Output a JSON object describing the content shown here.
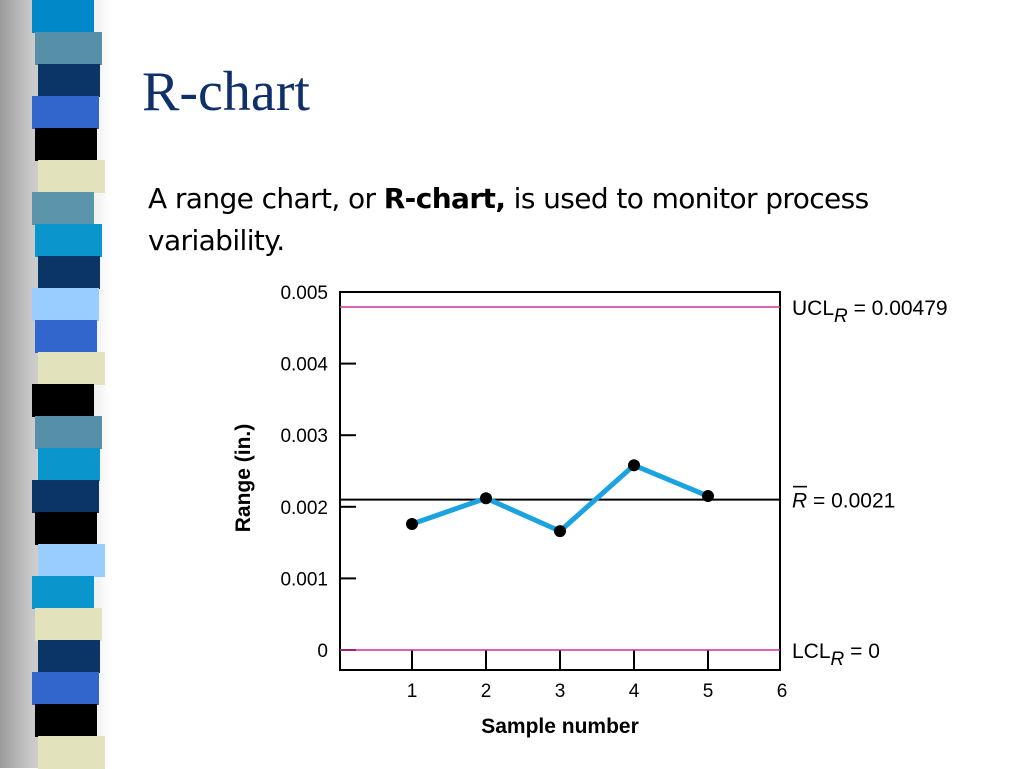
{
  "slide": {
    "title": "R-chart",
    "body": {
      "part1": "A range chart, or ",
      "bold": "R-chart,",
      "part2": " is used to monitor process variability."
    }
  },
  "decoration": {
    "band_colors": [
      "#0088c8",
      "#5590a8",
      "#0a3566",
      "#3366cc",
      "#000000",
      "#e2e2bc",
      "#5c94ac",
      "#0a96cc",
      "#0a3566",
      "#99ccff",
      "#3366cc",
      "#e2e2bc",
      "#000000",
      "#5590a8",
      "#0a96cc",
      "#0a3566",
      "#000000",
      "#99ccff",
      "#0a96cc",
      "#e2e2bc",
      "#0a3566",
      "#3366cc",
      "#000000",
      "#e2e2bc"
    ]
  },
  "chart_data": {
    "type": "line",
    "xlabel": "Sample number",
    "ylabel": "Range (in.)",
    "xlim": [
      0,
      6
    ],
    "ylim": [
      0,
      0.005
    ],
    "x_ticks": [
      1,
      2,
      3,
      4,
      5,
      6
    ],
    "y_ticks": [
      "0",
      "0.001",
      "0.002",
      "0.003",
      "0.004",
      "0.005"
    ],
    "y_tick_values": [
      0,
      0.001,
      0.002,
      0.003,
      0.004,
      0.005
    ],
    "series": [
      {
        "x": [
          1,
          2,
          3,
          4,
          5
        ],
        "values": [
          0.00176,
          0.00212,
          0.00166,
          0.00258,
          0.00215
        ],
        "color": "#1ba3e0"
      }
    ],
    "reference_lines": [
      {
        "value": 0.00479,
        "label_main": "UCL",
        "label_sub": "R",
        "label_tail": " = 0.00479",
        "color": "#cc3399"
      },
      {
        "value": 0.0021,
        "label_main": "R",
        "label_sub": "",
        "label_tail": " = 0.0021",
        "color": "#000000",
        "overline": true
      },
      {
        "value": 0,
        "label_main": "LCL",
        "label_sub": "R",
        "label_tail": " = 0",
        "color": "#cc3399"
      }
    ]
  }
}
